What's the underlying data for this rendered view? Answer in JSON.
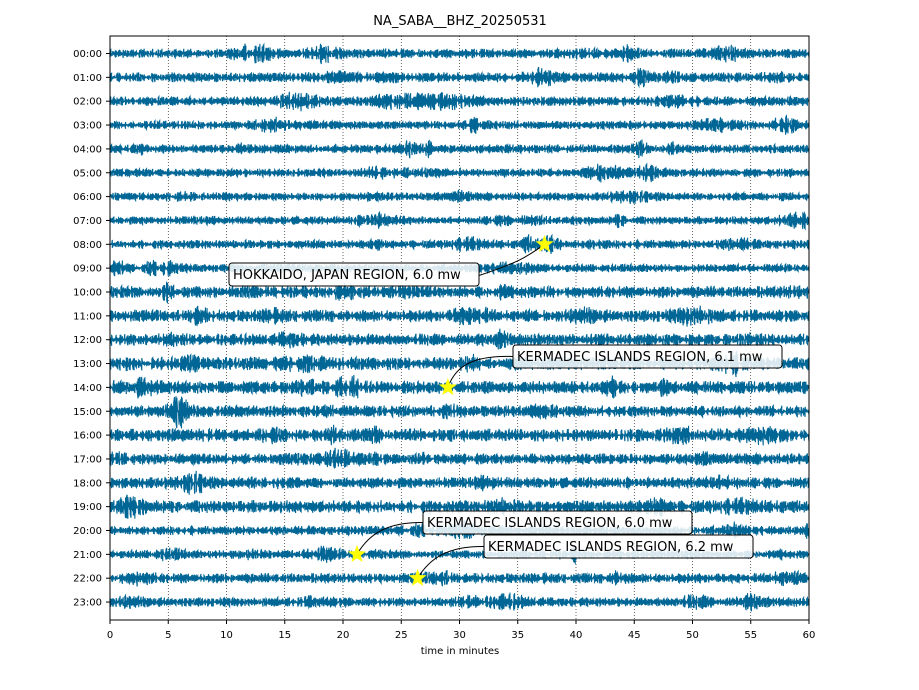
{
  "chart_data": {
    "type": "line",
    "title": "NA_SABA__BHZ_20250531",
    "xlabel": "time in minutes",
    "ylabel": "",
    "xlim": [
      0,
      60
    ],
    "x_ticks": [
      "0",
      "5",
      "10",
      "15",
      "20",
      "25",
      "30",
      "35",
      "40",
      "45",
      "50",
      "55",
      "60"
    ],
    "y_ticks": [
      "00:00",
      "01:00",
      "02:00",
      "03:00",
      "04:00",
      "05:00",
      "06:00",
      "07:00",
      "08:00",
      "09:00",
      "10:00",
      "11:00",
      "12:00",
      "13:00",
      "14:00",
      "15:00",
      "16:00",
      "17:00",
      "18:00",
      "19:00",
      "20:00",
      "21:00",
      "22:00",
      "23:00"
    ],
    "grid": "vertical dotted",
    "trace_color": "#006695",
    "marker_color": "#ffff00",
    "events": [
      {
        "hour": 8,
        "minute": 37.3,
        "label": "HOKKAIDO, JAPAN REGION, 6.0 mw"
      },
      {
        "hour": 14,
        "minute": 29.0,
        "label": "KERMADEC ISLANDS REGION, 6.1 mw"
      },
      {
        "hour": 21,
        "minute": 21.2,
        "label": "KERMADEC ISLANDS REGION, 6.0 mw"
      },
      {
        "hour": 22,
        "minute": 26.4,
        "label": "KERMADEC ISLANDS REGION, 6.2 mw"
      }
    ]
  }
}
